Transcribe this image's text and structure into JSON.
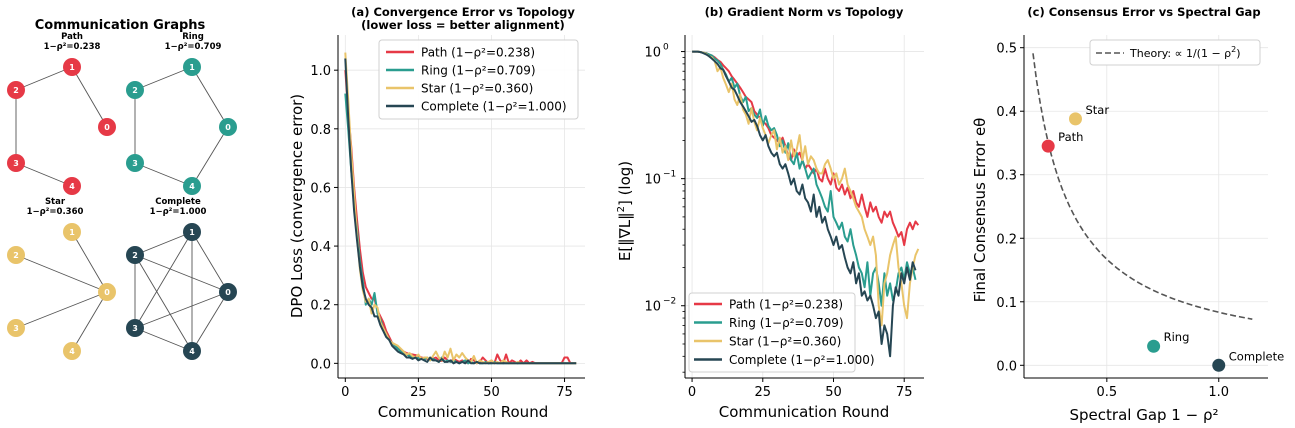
{
  "colors": {
    "Path": "#e63946",
    "Ring": "#2a9d8f",
    "Star": "#e9c46a",
    "Complete": "#264653",
    "theory": "#555555",
    "grid": "#e6e6e6"
  },
  "graphs_panel": {
    "title": "Communication Graphs",
    "graphs": [
      {
        "name": "Path",
        "title": "Path",
        "gap_label": "1−ρ²=0.238",
        "nodes": [
          "0",
          "1",
          "2",
          "3",
          "4"
        ],
        "edges": [
          [
            0,
            1
          ],
          [
            1,
            2
          ],
          [
            2,
            3
          ],
          [
            3,
            4
          ]
        ]
      },
      {
        "name": "Ring",
        "title": "Ring",
        "gap_label": "1−ρ²=0.709",
        "nodes": [
          "0",
          "1",
          "2",
          "3",
          "4"
        ],
        "edges": [
          [
            0,
            1
          ],
          [
            1,
            2
          ],
          [
            2,
            3
          ],
          [
            3,
            4
          ],
          [
            4,
            0
          ]
        ]
      },
      {
        "name": "Star",
        "title": "Star",
        "gap_label": "1−ρ²=0.360",
        "nodes": [
          "0",
          "1",
          "2",
          "3",
          "4"
        ],
        "edges": [
          [
            0,
            1
          ],
          [
            0,
            2
          ],
          [
            0,
            3
          ],
          [
            0,
            4
          ]
        ]
      },
      {
        "name": "Complete",
        "title": "Complete",
        "gap_label": "1−ρ²=1.000",
        "nodes": [
          "0",
          "1",
          "2",
          "3",
          "4"
        ],
        "edges": [
          [
            0,
            1
          ],
          [
            0,
            2
          ],
          [
            0,
            3
          ],
          [
            0,
            4
          ],
          [
            1,
            2
          ],
          [
            1,
            3
          ],
          [
            1,
            4
          ],
          [
            2,
            3
          ],
          [
            2,
            4
          ],
          [
            3,
            4
          ]
        ]
      }
    ]
  },
  "chart_data": [
    {
      "id": "a",
      "type": "line",
      "title": "(a) Convergence Error vs Topology",
      "subtitle": "(lower loss = better alignment)",
      "xlabel": "Communication Round",
      "ylabel": "DPO Loss (convergence error)",
      "xlim": [
        -2.5,
        82
      ],
      "ylim": [
        -0.05,
        1.12
      ],
      "xticks": [
        0,
        25,
        50,
        75
      ],
      "yticks": [
        0.0,
        0.2,
        0.4,
        0.6,
        0.8,
        1.0
      ],
      "ytick_labels": [
        "0.0",
        "0.2",
        "0.4",
        "0.6",
        "0.8",
        "1.0"
      ],
      "grid": true,
      "legend_position": "top-right",
      "series": [
        {
          "name": "Path (1−ρ²=0.238)",
          "key": "Path",
          "values": [
            1.0,
            0.86,
            0.74,
            0.6,
            0.49,
            0.39,
            0.31,
            0.26,
            0.24,
            0.22,
            0.22,
            0.18,
            0.16,
            0.14,
            0.11,
            0.09,
            0.07,
            0.06,
            0.05,
            0.045,
            0.04,
            0.035,
            0.032,
            0.03,
            0.028,
            0.025,
            0.02,
            0.018,
            0.015,
            0.012,
            0.015,
            0.02,
            0.01,
            0.008,
            0.02,
            0.01,
            0.005,
            0.015,
            0.01,
            0.005,
            0.01,
            0.005,
            0.0,
            0.015,
            0.01,
            0.0,
            0.005,
            0.02,
            0.01,
            0.0,
            0.01,
            0.0,
            0.03,
            0.01,
            0.0,
            0.03,
            0.0,
            0.01,
            0.005,
            0.0,
            0.01,
            0.0,
            0.01,
            0.0,
            0.005,
            0.0,
            0.0,
            0.0,
            0.0,
            0.0,
            0.0,
            0.0,
            0.0,
            0.0,
            0.0,
            0.02,
            0.02,
            0.0,
            0.0,
            0.0
          ]
        },
        {
          "name": "Ring (1−ρ²=0.709)",
          "key": "Ring",
          "values": [
            0.92,
            0.8,
            0.66,
            0.55,
            0.46,
            0.35,
            0.28,
            0.2,
            0.22,
            0.2,
            0.24,
            0.17,
            0.15,
            0.12,
            0.1,
            0.08,
            0.07,
            0.06,
            0.05,
            0.04,
            0.035,
            0.03,
            0.025,
            0.02,
            0.02,
            0.018,
            0.015,
            0.012,
            0.02,
            0.01,
            0.015,
            0.01,
            0.005,
            0.02,
            0.005,
            0.01,
            0.005,
            0.01,
            0.005,
            0.0,
            0.005,
            0.01,
            0.0,
            0.005,
            0.0,
            0.005,
            0.0,
            0.0,
            0.005,
            0.0,
            0.0,
            0.005,
            0.0,
            0.0,
            0.0,
            0.0,
            0.0,
            0.0,
            0.0,
            0.0,
            0.0,
            0.0,
            0.0,
            0.0,
            0.0,
            0.0,
            0.0,
            0.0,
            0.0,
            0.0,
            0.0,
            0.0,
            0.0,
            0.0,
            0.0,
            0.0,
            0.0,
            0.0,
            0.0,
            0.0
          ]
        },
        {
          "name": "Star (1−ρ²=0.360)",
          "key": "Star",
          "values": [
            1.06,
            0.9,
            0.72,
            0.58,
            0.44,
            0.32,
            0.25,
            0.21,
            0.22,
            0.17,
            0.2,
            0.19,
            0.14,
            0.12,
            0.1,
            0.08,
            0.07,
            0.065,
            0.06,
            0.05,
            0.04,
            0.03,
            0.035,
            0.025,
            0.02,
            0.03,
            0.015,
            0.02,
            0.02,
            0.01,
            0.025,
            0.04,
            0.02,
            0.01,
            0.04,
            0.02,
            0.05,
            0.01,
            0.03,
            0.02,
            0.035,
            0.02,
            0.01,
            0.005,
            0.025,
            0.0,
            0.01,
            0.005,
            0.0,
            0.005,
            0.01,
            0.0,
            0.005,
            0.0,
            0.01,
            0.005,
            0.0,
            0.0,
            0.0,
            0.005,
            0.0,
            0.0,
            0.0,
            0.0,
            0.0,
            0.0,
            0.0,
            0.0,
            0.0,
            0.0,
            0.0,
            0.0,
            0.0,
            0.0,
            0.0,
            0.0,
            0.0,
            0.0,
            0.0,
            0.0
          ]
        },
        {
          "name": "Complete (1−ρ²=1.000)",
          "key": "Complete",
          "values": [
            1.04,
            0.84,
            0.66,
            0.52,
            0.42,
            0.33,
            0.26,
            0.22,
            0.2,
            0.19,
            0.16,
            0.16,
            0.13,
            0.11,
            0.09,
            0.08,
            0.06,
            0.05,
            0.04,
            0.035,
            0.03,
            0.02,
            0.02,
            0.015,
            0.02,
            0.01,
            0.015,
            0.01,
            0.005,
            0.02,
            0.01,
            0.01,
            0.005,
            0.015,
            0.005,
            0.005,
            0.01,
            0.0,
            0.005,
            0.0,
            0.005,
            0.0,
            0.01,
            0.0,
            0.0,
            0.005,
            0.0,
            0.0,
            0.0,
            0.0,
            0.0,
            0.0,
            0.0,
            0.0,
            0.0,
            0.0,
            0.0,
            0.0,
            0.0,
            0.0,
            0.0,
            0.0,
            0.0,
            0.0,
            0.0,
            0.0,
            0.0,
            0.0,
            0.0,
            0.0,
            0.0,
            0.0,
            0.0,
            0.0,
            0.0,
            0.0,
            0.0,
            0.0,
            0.0,
            0.0
          ]
        }
      ]
    },
    {
      "id": "b",
      "type": "line",
      "title": "(b) Gradient Norm vs Topology",
      "xlabel": "Communication Round",
      "ylabel_pre": "E[‖∇L‖",
      "ylabel_sup": "2",
      "ylabel_post": "] (log)",
      "yscale": "log",
      "xlim": [
        -2.5,
        82
      ],
      "ylim": [
        0.0027,
        1.35
      ],
      "xticks": [
        0,
        25,
        50,
        75
      ],
      "yticks": [
        0.01,
        0.1,
        1
      ],
      "ytick_base": "10",
      "ytick_exponents": [
        "−2",
        "−1",
        "0"
      ],
      "grid": true,
      "legend_position": "bottom-left",
      "series": [
        {
          "name": "Path (1−ρ²=0.238)",
          "key": "Path",
          "values": [
            1.0,
            1.0,
            1.0,
            0.99,
            0.98,
            0.97,
            0.95,
            0.93,
            0.9,
            0.86,
            0.83,
            0.78,
            0.74,
            0.7,
            0.64,
            0.6,
            0.56,
            0.52,
            0.48,
            0.44,
            0.42,
            0.4,
            0.34,
            0.32,
            0.3,
            0.28,
            0.27,
            0.25,
            0.22,
            0.21,
            0.2,
            0.19,
            0.21,
            0.18,
            0.15,
            0.14,
            0.17,
            0.15,
            0.16,
            0.14,
            0.12,
            0.13,
            0.12,
            0.11,
            0.12,
            0.1,
            0.095,
            0.12,
            0.1,
            0.09,
            0.11,
            0.085,
            0.08,
            0.09,
            0.075,
            0.085,
            0.07,
            0.08,
            0.065,
            0.06,
            0.075,
            0.06,
            0.05,
            0.065,
            0.055,
            0.06,
            0.05,
            0.045,
            0.055,
            0.05,
            0.055,
            0.045,
            0.04,
            0.035,
            0.038,
            0.03,
            0.04,
            0.045,
            0.04,
            0.046,
            0.043
          ]
        },
        {
          "name": "Ring (1−ρ²=0.709)",
          "key": "Ring",
          "values": [
            1.0,
            1.0,
            1.0,
            0.99,
            0.98,
            0.97,
            0.95,
            0.93,
            0.88,
            0.85,
            0.8,
            0.72,
            0.66,
            0.58,
            0.62,
            0.52,
            0.56,
            0.45,
            0.4,
            0.44,
            0.34,
            0.36,
            0.32,
            0.3,
            0.35,
            0.26,
            0.31,
            0.26,
            0.24,
            0.25,
            0.22,
            0.18,
            0.2,
            0.16,
            0.19,
            0.14,
            0.13,
            0.16,
            0.12,
            0.14,
            0.12,
            0.1,
            0.11,
            0.12,
            0.09,
            0.08,
            0.07,
            0.06,
            0.055,
            0.08,
            0.05,
            0.045,
            0.04,
            0.045,
            0.035,
            0.032,
            0.04,
            0.03,
            0.025,
            0.02,
            0.018,
            0.014,
            0.022,
            0.012,
            0.018,
            0.02,
            0.015,
            0.01,
            0.018,
            0.012,
            0.015,
            0.011,
            0.013,
            0.018,
            0.02,
            0.016,
            0.022,
            0.018,
            0.02,
            0.016
          ]
        },
        {
          "name": "Star (1−ρ²=0.360)",
          "key": "Star",
          "values": [
            1.0,
            1.0,
            1.0,
            0.99,
            0.98,
            0.96,
            0.92,
            0.9,
            0.84,
            0.7,
            0.75,
            0.62,
            0.55,
            0.48,
            0.56,
            0.42,
            0.38,
            0.46,
            0.35,
            0.32,
            0.27,
            0.36,
            0.28,
            0.24,
            0.3,
            0.25,
            0.22,
            0.19,
            0.22,
            0.24,
            0.17,
            0.21,
            0.16,
            0.18,
            0.14,
            0.2,
            0.15,
            0.17,
            0.22,
            0.14,
            0.18,
            0.13,
            0.15,
            0.14,
            0.12,
            0.11,
            0.11,
            0.13,
            0.14,
            0.12,
            0.1,
            0.11,
            0.09,
            0.1,
            0.12,
            0.09,
            0.08,
            0.07,
            0.06,
            0.055,
            0.05,
            0.04,
            0.035,
            0.03,
            0.035,
            0.025,
            0.01,
            0.007,
            0.015,
            0.018,
            0.025,
            0.03,
            0.035,
            0.02,
            0.015,
            0.01,
            0.008,
            0.015,
            0.02,
            0.025,
            0.028
          ]
        },
        {
          "name": "Complete (1−ρ²=1.000)",
          "key": "Complete",
          "values": [
            1.0,
            1.0,
            1.0,
            0.99,
            0.97,
            0.95,
            0.92,
            0.88,
            0.84,
            0.8,
            0.74,
            0.72,
            0.64,
            0.58,
            0.52,
            0.5,
            0.45,
            0.4,
            0.37,
            0.34,
            0.31,
            0.28,
            0.29,
            0.26,
            0.22,
            0.2,
            0.22,
            0.18,
            0.16,
            0.15,
            0.16,
            0.13,
            0.12,
            0.13,
            0.11,
            0.09,
            0.1,
            0.08,
            0.075,
            0.09,
            0.07,
            0.065,
            0.055,
            0.075,
            0.05,
            0.06,
            0.045,
            0.05,
            0.04,
            0.035,
            0.03,
            0.035,
            0.028,
            0.03,
            0.024,
            0.02,
            0.018,
            0.022,
            0.015,
            0.018,
            0.012,
            0.013,
            0.011,
            0.012,
            0.01,
            0.008,
            0.009,
            0.005,
            0.007,
            0.006,
            0.004,
            0.01,
            0.014,
            0.012,
            0.018,
            0.015,
            0.02,
            0.016,
            0.022,
            0.019
          ]
        }
      ]
    },
    {
      "id": "c",
      "type": "scatter",
      "title": "(c) Consensus Error vs Spectral Gap",
      "xlabel": "Spectral Gap  1 − ρ²",
      "ylabel": "Final Consensus Error eθ",
      "xlim": [
        0.13,
        1.22
      ],
      "ylim": [
        -0.02,
        0.52
      ],
      "xticks": [
        0.5,
        1.0
      ],
      "xtick_labels": [
        "0.5",
        "1.0"
      ],
      "yticks": [
        0.0,
        0.1,
        0.2,
        0.3,
        0.4,
        0.5
      ],
      "ytick_labels": [
        "0.0",
        "0.1",
        "0.2",
        "0.3",
        "0.4",
        "0.5"
      ],
      "grid": true,
      "legend_position": "top-right",
      "theory": {
        "label_pre": "Theory: ∝ 1/(1 − ρ",
        "label_sup": "2",
        "label_post": ")",
        "k": 0.0835,
        "x_start": 0.17,
        "x_end": 1.15
      },
      "points": [
        {
          "name": "Path",
          "key": "Path",
          "x": 0.238,
          "y": 0.345
        },
        {
          "name": "Star",
          "key": "Star",
          "x": 0.36,
          "y": 0.388
        },
        {
          "name": "Ring",
          "key": "Ring",
          "x": 0.709,
          "y": 0.03
        },
        {
          "name": "Complete",
          "key": "Complete",
          "x": 1.0,
          "y": 0.0
        }
      ]
    }
  ]
}
